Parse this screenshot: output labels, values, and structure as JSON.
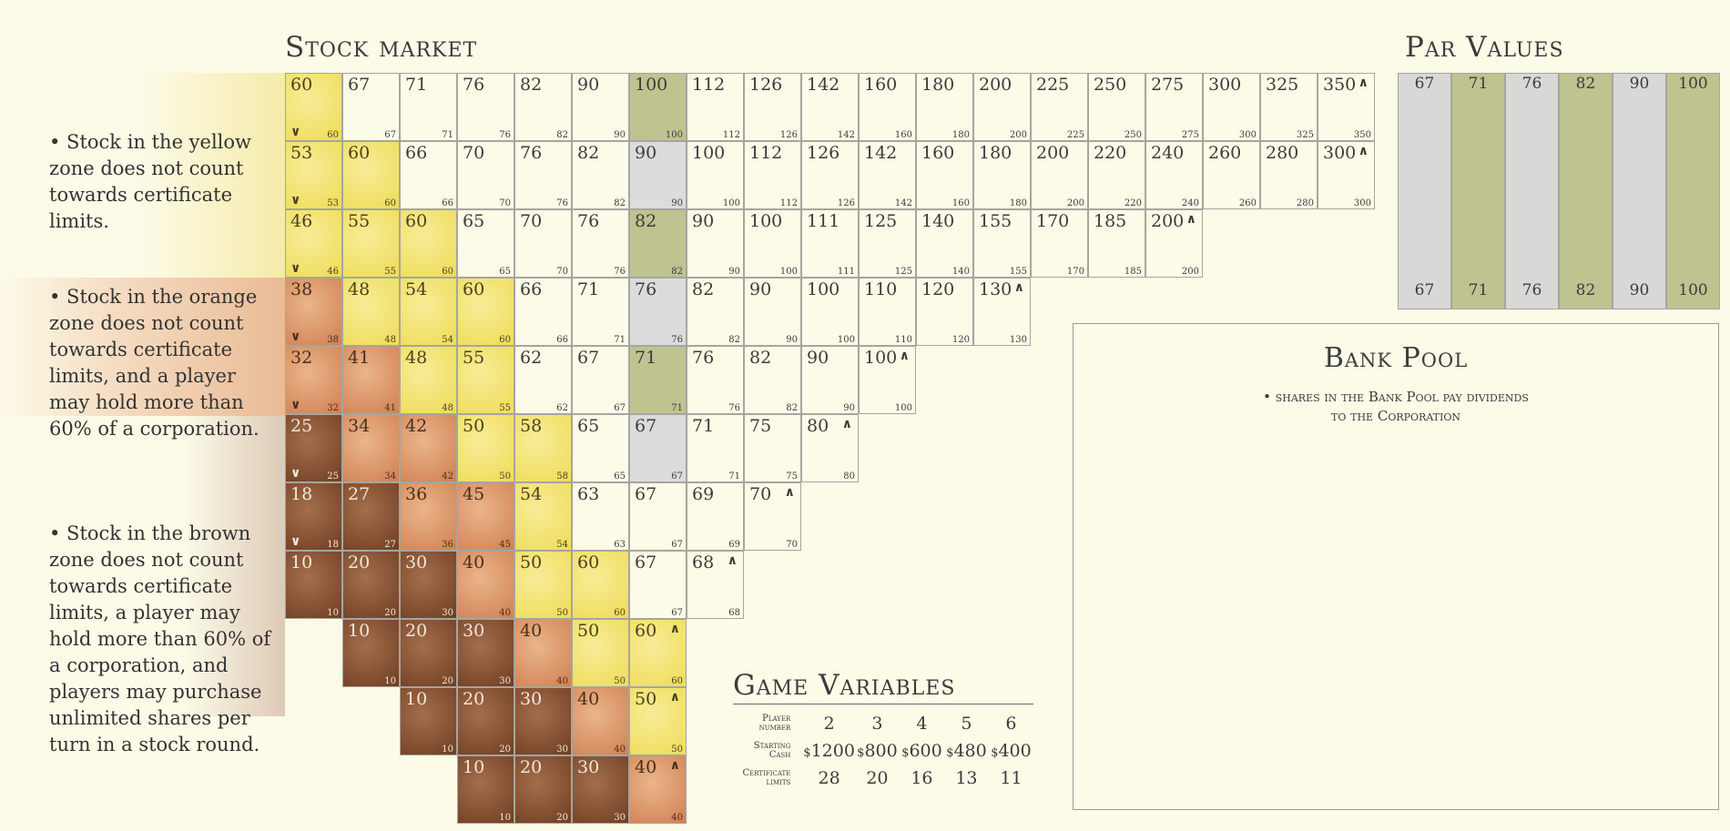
{
  "stock_market": {
    "title": "Stock market",
    "rows": [
      {
        "cells": [
          {
            "v": 60,
            "c": "y",
            "arrow": "down"
          },
          {
            "v": 67,
            "c": "w"
          },
          {
            "v": 71,
            "c": "w"
          },
          {
            "v": 76,
            "c": "w"
          },
          {
            "v": 82,
            "c": "w"
          },
          {
            "v": 90,
            "c": "w"
          },
          {
            "v": 100,
            "c": "gn"
          },
          {
            "v": 112,
            "c": "w"
          },
          {
            "v": 126,
            "c": "w"
          },
          {
            "v": 142,
            "c": "w"
          },
          {
            "v": 160,
            "c": "w"
          },
          {
            "v": 180,
            "c": "w"
          },
          {
            "v": 200,
            "c": "w"
          },
          {
            "v": 225,
            "c": "w"
          },
          {
            "v": 250,
            "c": "w"
          },
          {
            "v": 275,
            "c": "w"
          },
          {
            "v": 300,
            "c": "w"
          },
          {
            "v": 325,
            "c": "w"
          },
          {
            "v": 350,
            "c": "w",
            "arrow": "up"
          }
        ]
      },
      {
        "cells": [
          {
            "v": 53,
            "c": "y",
            "arrow": "down"
          },
          {
            "v": 60,
            "c": "y"
          },
          {
            "v": 66,
            "c": "w"
          },
          {
            "v": 70,
            "c": "w"
          },
          {
            "v": 76,
            "c": "w"
          },
          {
            "v": 82,
            "c": "w"
          },
          {
            "v": 90,
            "c": "gr"
          },
          {
            "v": 100,
            "c": "w"
          },
          {
            "v": 112,
            "c": "w"
          },
          {
            "v": 126,
            "c": "w"
          },
          {
            "v": 142,
            "c": "w"
          },
          {
            "v": 160,
            "c": "w"
          },
          {
            "v": 180,
            "c": "w"
          },
          {
            "v": 200,
            "c": "w"
          },
          {
            "v": 220,
            "c": "w"
          },
          {
            "v": 240,
            "c": "w"
          },
          {
            "v": 260,
            "c": "w"
          },
          {
            "v": 280,
            "c": "w"
          },
          {
            "v": 300,
            "c": "w",
            "arrow": "up"
          }
        ]
      },
      {
        "cells": [
          {
            "v": 46,
            "c": "y",
            "arrow": "down"
          },
          {
            "v": 55,
            "c": "y"
          },
          {
            "v": 60,
            "c": "y"
          },
          {
            "v": 65,
            "c": "w"
          },
          {
            "v": 70,
            "c": "w"
          },
          {
            "v": 76,
            "c": "w"
          },
          {
            "v": 82,
            "c": "gn"
          },
          {
            "v": 90,
            "c": "w"
          },
          {
            "v": 100,
            "c": "w"
          },
          {
            "v": 111,
            "c": "w"
          },
          {
            "v": 125,
            "c": "w"
          },
          {
            "v": 140,
            "c": "w"
          },
          {
            "v": 155,
            "c": "w"
          },
          {
            "v": 170,
            "c": "w"
          },
          {
            "v": 185,
            "c": "w"
          },
          {
            "v": 200,
            "c": "w",
            "arrow": "up"
          }
        ]
      },
      {
        "cells": [
          {
            "v": 38,
            "c": "o",
            "arrow": "down"
          },
          {
            "v": 48,
            "c": "y"
          },
          {
            "v": 54,
            "c": "y"
          },
          {
            "v": 60,
            "c": "y"
          },
          {
            "v": 66,
            "c": "w"
          },
          {
            "v": 71,
            "c": "w"
          },
          {
            "v": 76,
            "c": "gr"
          },
          {
            "v": 82,
            "c": "w"
          },
          {
            "v": 90,
            "c": "w"
          },
          {
            "v": 100,
            "c": "w"
          },
          {
            "v": 110,
            "c": "w"
          },
          {
            "v": 120,
            "c": "w"
          },
          {
            "v": 130,
            "c": "w",
            "arrow": "up"
          }
        ]
      },
      {
        "cells": [
          {
            "v": 32,
            "c": "o",
            "arrow": "down"
          },
          {
            "v": 41,
            "c": "o"
          },
          {
            "v": 48,
            "c": "y"
          },
          {
            "v": 55,
            "c": "y"
          },
          {
            "v": 62,
            "c": "w"
          },
          {
            "v": 67,
            "c": "w"
          },
          {
            "v": 71,
            "c": "gn"
          },
          {
            "v": 76,
            "c": "w"
          },
          {
            "v": 82,
            "c": "w"
          },
          {
            "v": 90,
            "c": "w"
          },
          {
            "v": 100,
            "c": "w",
            "arrow": "up"
          }
        ]
      },
      {
        "cells": [
          {
            "v": 25,
            "c": "b",
            "arrow": "down"
          },
          {
            "v": 34,
            "c": "o"
          },
          {
            "v": 42,
            "c": "o"
          },
          {
            "v": 50,
            "c": "y"
          },
          {
            "v": 58,
            "c": "y"
          },
          {
            "v": 65,
            "c": "w"
          },
          {
            "v": 67,
            "c": "gr"
          },
          {
            "v": 71,
            "c": "w"
          },
          {
            "v": 75,
            "c": "w"
          },
          {
            "v": 80,
            "c": "w",
            "arrow": "up"
          }
        ]
      },
      {
        "cells": [
          {
            "v": 18,
            "c": "b",
            "arrow": "down"
          },
          {
            "v": 27,
            "c": "b"
          },
          {
            "v": 36,
            "c": "o"
          },
          {
            "v": 45,
            "c": "o"
          },
          {
            "v": 54,
            "c": "y"
          },
          {
            "v": 63,
            "c": "w"
          },
          {
            "v": 67,
            "c": "w"
          },
          {
            "v": 69,
            "c": "w"
          },
          {
            "v": 70,
            "c": "w",
            "arrow": "up"
          }
        ]
      },
      {
        "cells": [
          {
            "v": 10,
            "c": "b"
          },
          {
            "v": 20,
            "c": "b"
          },
          {
            "v": 30,
            "c": "b"
          },
          {
            "v": 40,
            "c": "o"
          },
          {
            "v": 50,
            "c": "y"
          },
          {
            "v": 60,
            "c": "y"
          },
          {
            "v": 67,
            "c": "w"
          },
          {
            "v": 68,
            "c": "w",
            "arrow": "up"
          }
        ]
      },
      {
        "start_col": 1,
        "cells": [
          {
            "v": 10,
            "c": "b"
          },
          {
            "v": 20,
            "c": "b"
          },
          {
            "v": 30,
            "c": "b"
          },
          {
            "v": 40,
            "c": "o"
          },
          {
            "v": 50,
            "c": "y"
          },
          {
            "v": 60,
            "c": "y",
            "arrow": "up"
          }
        ]
      },
      {
        "start_col": 2,
        "cells": [
          {
            "v": 10,
            "c": "b"
          },
          {
            "v": 20,
            "c": "b"
          },
          {
            "v": 30,
            "c": "b"
          },
          {
            "v": 40,
            "c": "o"
          },
          {
            "v": 50,
            "c": "y",
            "arrow": "up"
          }
        ]
      },
      {
        "start_col": 3,
        "cells": [
          {
            "v": 10,
            "c": "b"
          },
          {
            "v": 20,
            "c": "b"
          },
          {
            "v": 30,
            "c": "b"
          },
          {
            "v": 40,
            "c": "o",
            "arrow": "up"
          }
        ]
      }
    ]
  },
  "notes": {
    "yellow": "• Stock in the yellow zone does not count towards certificate limits.",
    "orange": "• Stock in the orange zone does not count towards certificate limits, and a player may hold more than 60% of a corporation.",
    "brown": "• Stock in the brown zone does not count towards certificate limits, a player may hold more than 60% of a corporation, and players may purchase unlimited shares per turn in a stock round."
  },
  "par_values": {
    "title": "Par Values",
    "values": [
      {
        "v": 67,
        "c": "g1"
      },
      {
        "v": 71,
        "c": "g2"
      },
      {
        "v": 76,
        "c": "g1"
      },
      {
        "v": 82,
        "c": "g2"
      },
      {
        "v": 90,
        "c": "g1"
      },
      {
        "v": 100,
        "c": "g2"
      }
    ]
  },
  "bank_pool": {
    "title": "Bank Pool",
    "note_line1": "• shares in the Bank Pool pay dividends",
    "note_line2": "to the Corporation"
  },
  "game_variables": {
    "title": "Game Variables",
    "player_label_1": "Player",
    "player_label_2": "number",
    "cash_label_1": "Starting",
    "cash_label_2": "Cash",
    "cert_label_1": "Certificate",
    "cert_label_2": "limits",
    "currency": "$",
    "players": [
      "2",
      "3",
      "4",
      "5",
      "6"
    ],
    "starting_cash": [
      "1200",
      "800",
      "600",
      "480",
      "400"
    ],
    "certificate_limits": [
      "28",
      "20",
      "16",
      "13",
      "11"
    ]
  },
  "colors": {
    "background": "#fcfbe8",
    "yellow_zone": "#efdc56",
    "orange_zone": "#cf8052",
    "brown_zone": "#6f3e22",
    "par_grey": "#dcdcdc",
    "par_green": "#bfc390"
  }
}
